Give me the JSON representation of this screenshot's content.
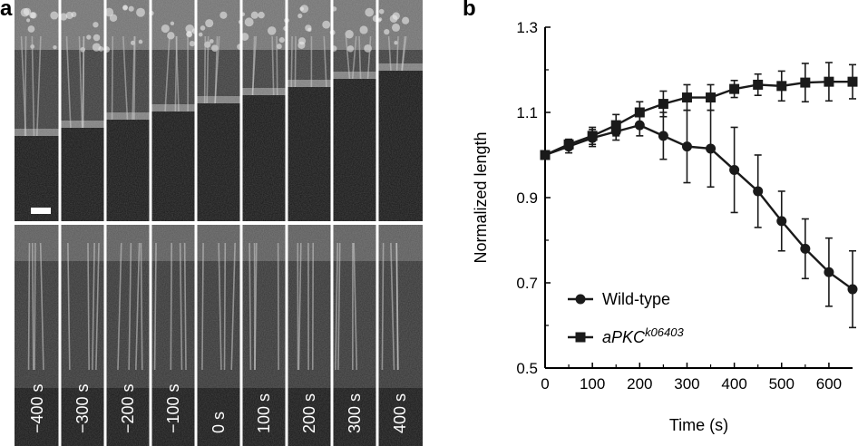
{
  "figure": {
    "panel_a_label": "a",
    "panel_b_label": "b"
  },
  "panel_a": {
    "time_labels": [
      "−400 s",
      "−300 s",
      "−200 s",
      "−100 s",
      "0 s",
      "100 s",
      "200 s",
      "300 s",
      "400 s"
    ],
    "background_color": "#141414",
    "divider_color": "#ffffff"
  },
  "chart_data": {
    "type": "line",
    "xlabel": "Time (s)",
    "ylabel": "Normalized length",
    "xlim": [
      0,
      650
    ],
    "ylim": [
      0.5,
      1.3
    ],
    "xticks": [
      "0",
      "100",
      "200",
      "300",
      "400",
      "500",
      "600"
    ],
    "yticks": [
      "0.5",
      "0.7",
      "0.9",
      "1.1",
      "1.3"
    ],
    "legend_position": "bottom-left",
    "series": [
      {
        "name": "Wild-type",
        "marker": "circle",
        "x": [
          0,
          50,
          100,
          150,
          200,
          250,
          300,
          350,
          400,
          450,
          500,
          550,
          600,
          650
        ],
        "y": [
          1.0,
          1.02,
          1.04,
          1.055,
          1.07,
          1.045,
          1.02,
          1.015,
          0.965,
          0.915,
          0.845,
          0.78,
          0.725,
          0.685
        ],
        "err": [
          0.008,
          0.015,
          0.02,
          0.02,
          0.025,
          0.055,
          0.085,
          0.09,
          0.1,
          0.085,
          0.07,
          0.07,
          0.08,
          0.09
        ]
      },
      {
        "name": "aPKC",
        "name_superscript": "k06403",
        "marker": "square",
        "x": [
          0,
          50,
          100,
          150,
          200,
          250,
          300,
          350,
          400,
          450,
          500,
          550,
          600,
          650
        ],
        "y": [
          1.0,
          1.025,
          1.045,
          1.07,
          1.1,
          1.12,
          1.135,
          1.135,
          1.155,
          1.165,
          1.162,
          1.17,
          1.172,
          1.172
        ],
        "err": [
          0.008,
          0.012,
          0.02,
          0.025,
          0.025,
          0.03,
          0.03,
          0.03,
          0.02,
          0.025,
          0.035,
          0.045,
          0.045,
          0.04
        ]
      }
    ]
  }
}
